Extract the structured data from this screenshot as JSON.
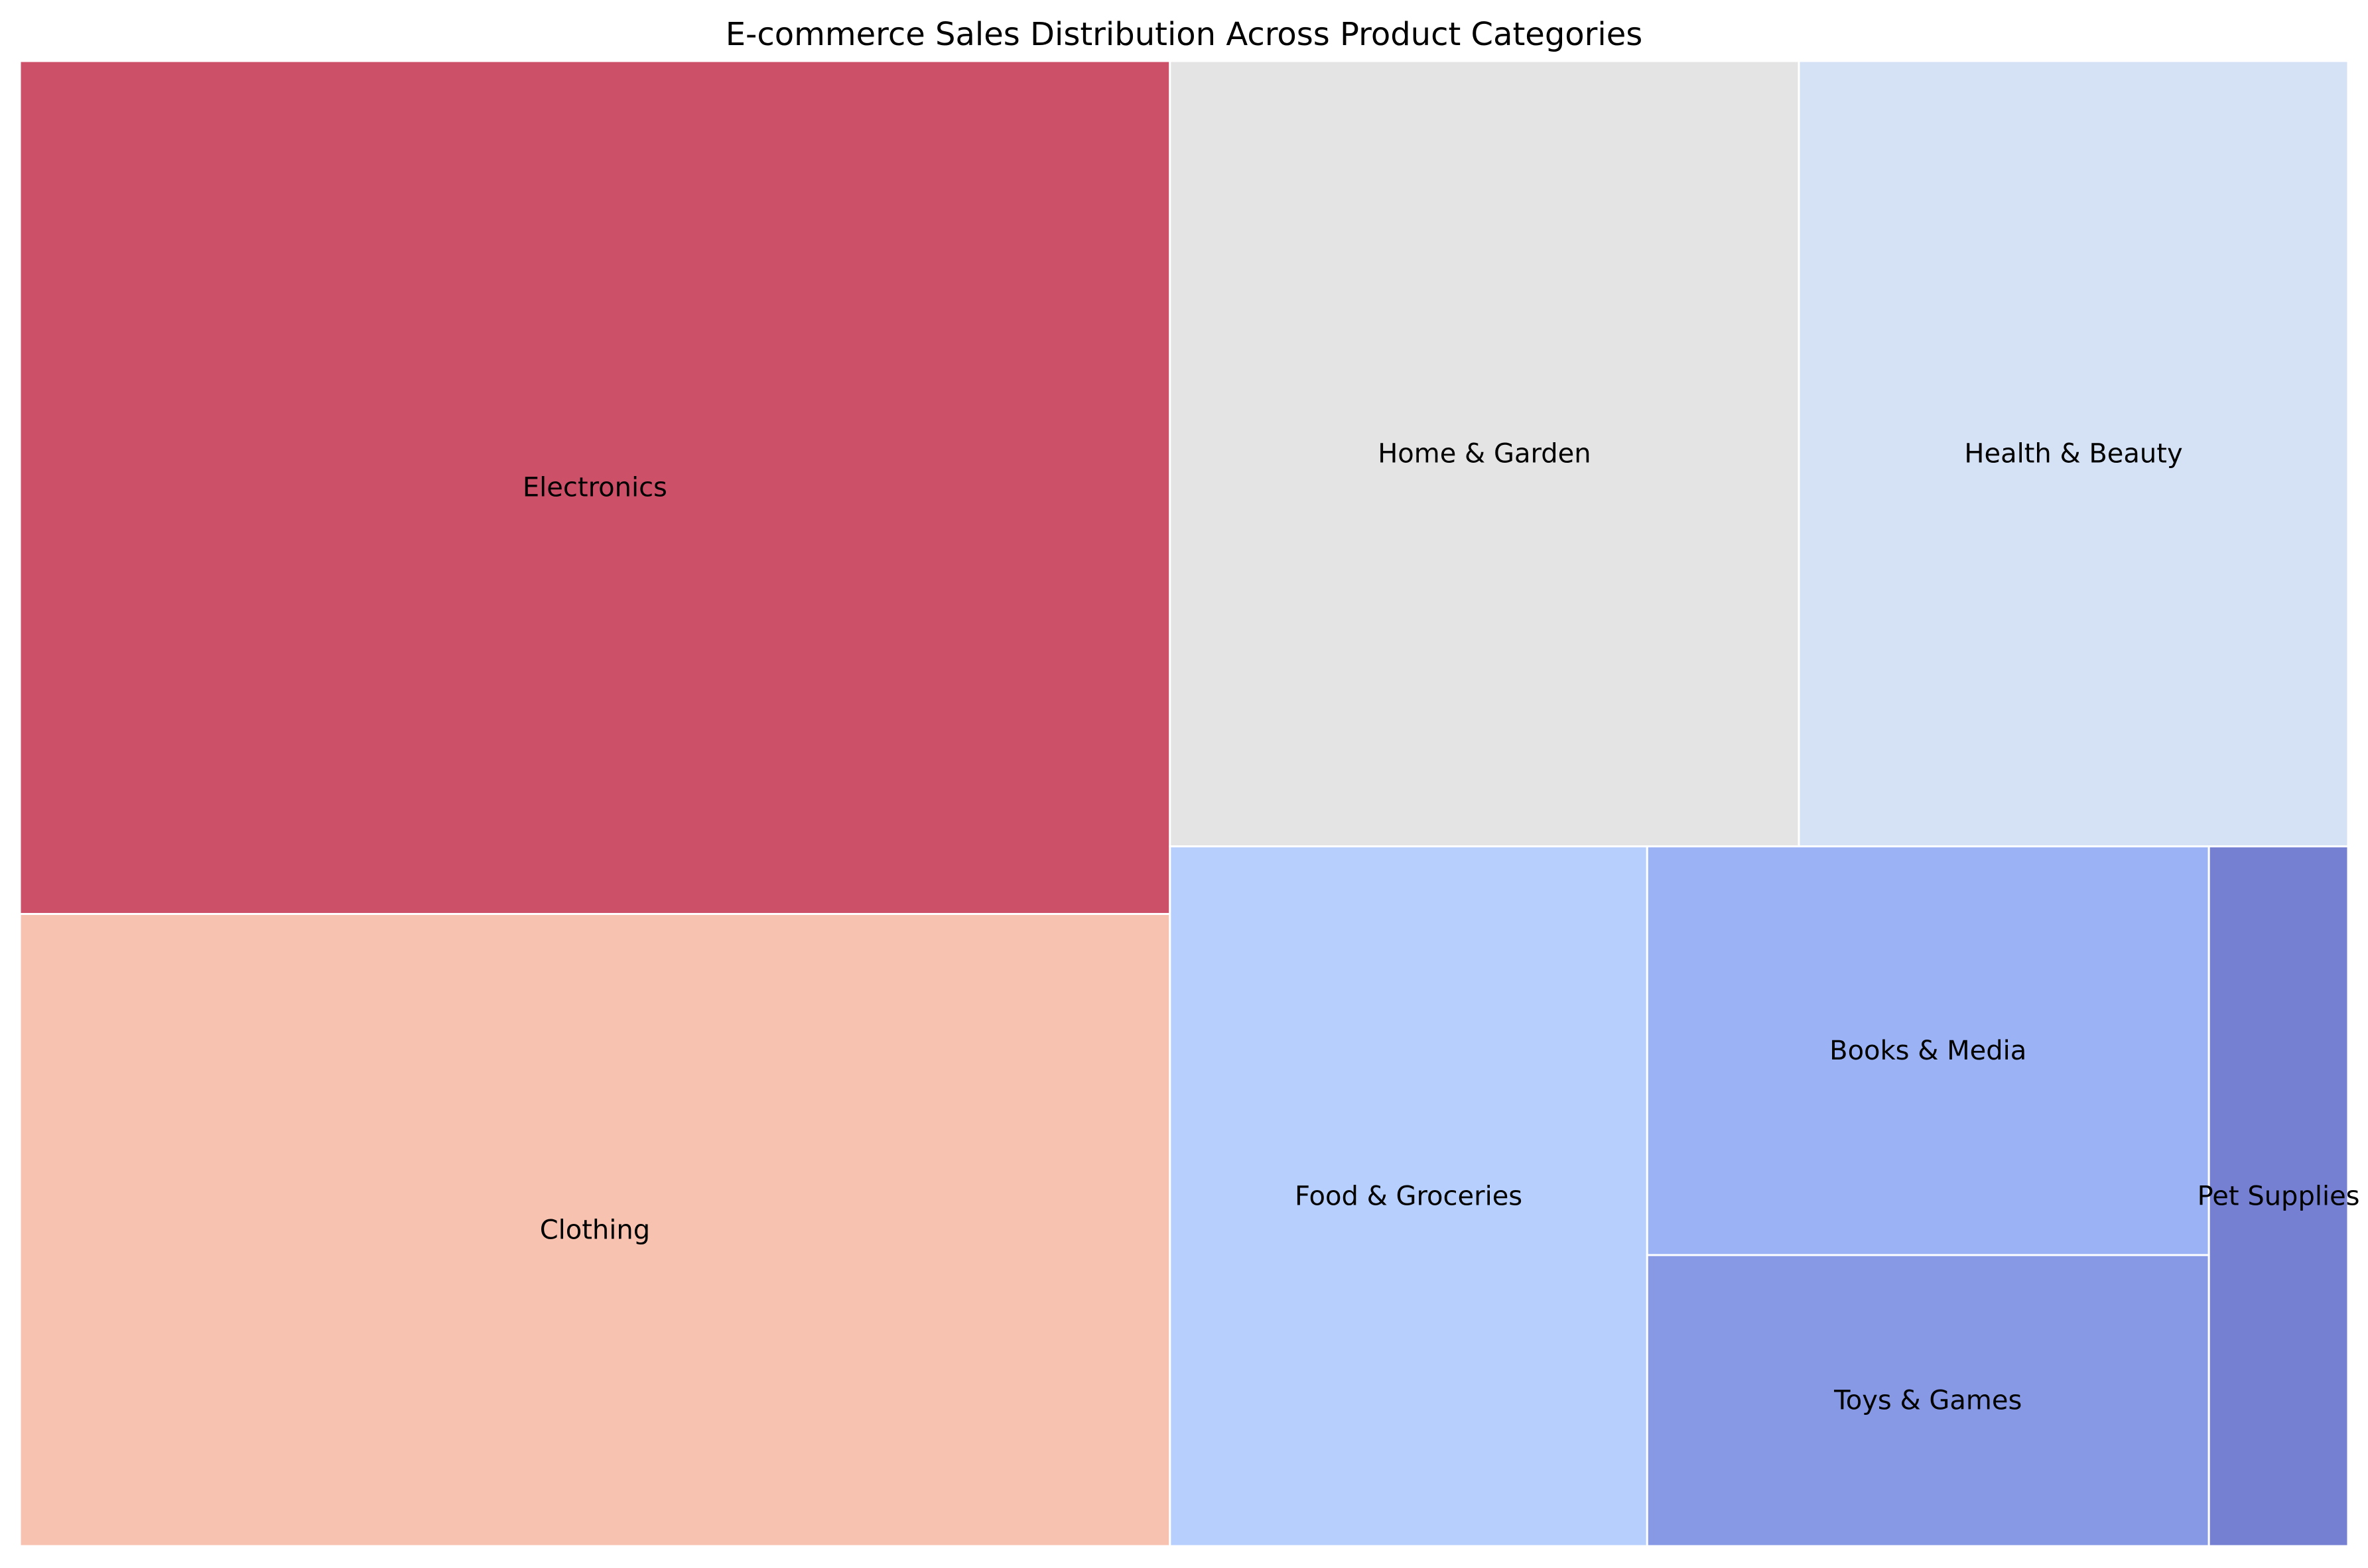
{
  "chart_data": {
    "type": "treemap",
    "title": "E-commerce Sales Distribution Across Product Categories",
    "items": [
      {
        "label": "Electronics",
        "value": 28.2,
        "color": "#cb5068"
      },
      {
        "label": "Clothing",
        "value": 20.9,
        "color": "#f7c3b0"
      },
      {
        "label": "Home & Garden",
        "value": 14.2,
        "color": "#e4e4e4"
      },
      {
        "label": "Health & Beauty",
        "value": 12.4,
        "color": "#d5e2f5"
      },
      {
        "label": "Food & Groceries",
        "value": 9.6,
        "color": "#b7cffc"
      },
      {
        "label": "Books & Media",
        "value": 6.6,
        "color": "#9bb3f5"
      },
      {
        "label": "Toys & Games",
        "value": 4.7,
        "color": "#8799e4"
      },
      {
        "label": "Pet Supplies",
        "value": 2.8,
        "color": "#7580d3"
      }
    ],
    "edge_color": "#ffffff",
    "axes": "off"
  }
}
